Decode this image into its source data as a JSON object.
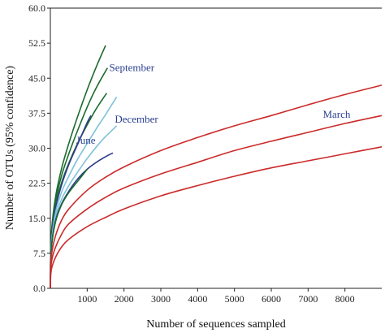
{
  "chart_data": {
    "type": "line",
    "title": "",
    "xlabel": "Number of sequences sampled",
    "ylabel": "Number of OTUs (95% confidence)",
    "xlim": [
      0,
      9000
    ],
    "ylim": [
      0,
      60
    ],
    "xticks": [
      1000,
      2000,
      3000,
      4000,
      5000,
      6000,
      7000,
      8000
    ],
    "xtick_labels": [
      "1000",
      "2000",
      "3000",
      "4000",
      "5000",
      "6000",
      "7000",
      "8000"
    ],
    "yticks": [
      0,
      7.5,
      15,
      22.5,
      30,
      37.5,
      45,
      52.5,
      60
    ],
    "ytick_labels": [
      "0.0",
      "7.5",
      "15.0",
      "22.5",
      "30.0",
      "37.5",
      "45.0",
      "52.5",
      "60.0"
    ],
    "grid": false,
    "legend": "none",
    "annotations": [
      {
        "text": "September",
        "x": 1600,
        "y": 46.5,
        "color": "#2a3f8f"
      },
      {
        "text": "December",
        "x": 1750,
        "y": 35.5,
        "color": "#2a3f8f"
      },
      {
        "text": "June",
        "x": 700,
        "y": 31.0,
        "color": "#2a3f8f"
      },
      {
        "text": "March",
        "x": 7400,
        "y": 36.5,
        "color": "#2a3f8f"
      }
    ],
    "series": [
      {
        "color": "#1b6b2e",
        "x_end": 1500,
        "x": [
          0,
          10,
          50,
          150,
          300,
          500,
          750,
          1000,
          1250,
          1500
        ],
        "y": [
          0,
          8.5,
          14.0,
          20.0,
          25.5,
          31.0,
          37.0,
          42.5,
          47.5,
          52.0
        ]
      },
      {
        "color": "#1b6b2e",
        "x_end": 1550,
        "x": [
          0,
          10,
          50,
          150,
          300,
          500,
          750,
          1000,
          1250,
          1550
        ],
        "y": [
          0,
          8.0,
          13.5,
          19.0,
          24.0,
          28.8,
          34.0,
          38.8,
          43.0,
          47.2
        ]
      },
      {
        "color": "#1b6b2e",
        "x_end": 1530,
        "x": [
          0,
          10,
          50,
          150,
          300,
          500,
          750,
          1000,
          1250,
          1530
        ],
        "y": [
          0,
          7.5,
          12.8,
          18.0,
          22.5,
          26.8,
          31.2,
          35.0,
          38.5,
          41.8
        ]
      },
      {
        "color": "#2b3c8c",
        "x_end": 1100,
        "x": [
          0,
          10,
          50,
          150,
          300,
          500,
          750,
          1000,
          1100
        ],
        "y": [
          0,
          7.0,
          12.0,
          17.5,
          22.0,
          26.5,
          31.0,
          35.5,
          37.0
        ]
      },
      {
        "color": "#7fc1d9",
        "x_end": 1800,
        "x": [
          0,
          10,
          50,
          150,
          300,
          500,
          750,
          1000,
          1250,
          1500,
          1800
        ],
        "y": [
          0,
          6.8,
          11.5,
          16.5,
          20.5,
          24.0,
          27.8,
          31.0,
          34.2,
          37.2,
          41.0
        ]
      },
      {
        "color": "#7fc1d9",
        "x_end": 1800,
        "x": [
          0,
          10,
          50,
          150,
          300,
          500,
          750,
          1000,
          1250,
          1500,
          1800
        ],
        "y": [
          0,
          6.5,
          11.0,
          15.5,
          19.0,
          22.0,
          25.0,
          27.8,
          30.3,
          32.5,
          34.8
        ]
      },
      {
        "color": "#2b3c8c",
        "x_end": 1700,
        "x": [
          0,
          10,
          50,
          150,
          300,
          500,
          750,
          1000,
          1250,
          1500,
          1700
        ],
        "y": [
          0,
          6.3,
          10.5,
          14.8,
          18.0,
          20.8,
          23.5,
          25.5,
          27.0,
          28.2,
          29.0
        ]
      },
      {
        "color": "#1b6b2e",
        "x_end": 1000,
        "x": [
          0,
          10,
          50,
          150,
          300,
          500,
          750,
          1000
        ],
        "y": [
          0,
          6.0,
          10.2,
          14.5,
          17.8,
          20.5,
          23.0,
          25.5
        ]
      },
      {
        "color": "#cc2a2a",
        "x_end": 9000,
        "x": [
          0,
          10,
          50,
          150,
          300,
          500,
          1000,
          1500,
          2000,
          3000,
          4000,
          5000,
          6000,
          7000,
          8000,
          9000
        ],
        "y": [
          0,
          5.0,
          8.2,
          11.5,
          14.5,
          17.0,
          21.0,
          23.8,
          26.0,
          29.5,
          32.3,
          34.8,
          37.0,
          39.3,
          41.5,
          43.5
        ]
      },
      {
        "color": "#cc2a2a",
        "x_end": 9000,
        "x": [
          0,
          10,
          50,
          150,
          300,
          500,
          1000,
          1500,
          2000,
          3000,
          4000,
          5000,
          6000,
          7000,
          8000,
          9000
        ],
        "y": [
          0,
          4.0,
          6.5,
          9.0,
          11.5,
          13.8,
          17.0,
          19.5,
          21.5,
          24.5,
          27.0,
          29.5,
          31.5,
          33.4,
          35.3,
          37.0
        ]
      },
      {
        "color": "#cc2a2a",
        "x_end": 9000,
        "x": [
          0,
          10,
          50,
          150,
          300,
          500,
          1000,
          1500,
          2000,
          3000,
          4000,
          5000,
          6000,
          7000,
          8000,
          9000
        ],
        "y": [
          0,
          3.0,
          4.8,
          6.8,
          8.8,
          10.5,
          13.2,
          15.2,
          17.0,
          19.8,
          22.0,
          24.0,
          25.8,
          27.3,
          28.8,
          30.3
        ]
      }
    ]
  }
}
